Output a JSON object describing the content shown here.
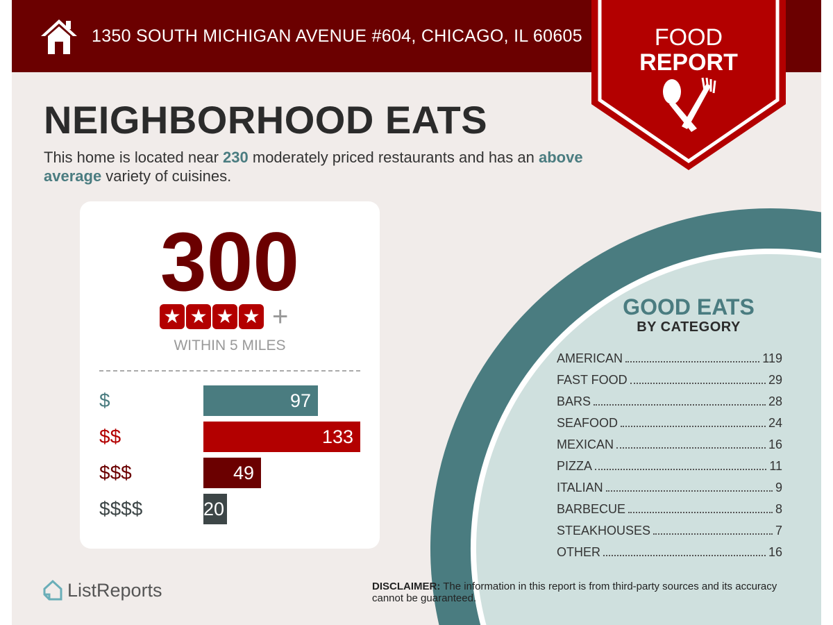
{
  "header": {
    "address": "1350 SOUTH MICHIGAN AVENUE #604, CHICAGO, IL 60605",
    "badge_line1": "FOOD",
    "badge_line2": "REPORT",
    "colors": {
      "dark_red": "#6b0000",
      "red": "#b30000",
      "teal": "#4a7c80"
    }
  },
  "main": {
    "title": "NEIGHBORHOOD EATS",
    "intro_pre": "This home is located near ",
    "intro_count": "230",
    "intro_mid": " moderately priced restaurants and has an ",
    "intro_variety": "above average",
    "intro_post": " variety of cuisines."
  },
  "summary": {
    "total": "300",
    "rating_stars": 4,
    "plus": "+",
    "within": "WITHIN 5 MILES"
  },
  "chart_data": {
    "type": "bar",
    "orientation": "horizontal",
    "categories": [
      "$",
      "$$",
      "$$$",
      "$$$$"
    ],
    "values": [
      97,
      133,
      49,
      20
    ],
    "colors": [
      "#4a7c80",
      "#b30000",
      "#6b0000",
      "#3d4647"
    ],
    "title": "",
    "xlabel": "",
    "ylabel": ""
  },
  "categories": {
    "title": "GOOD EATS",
    "subtitle": "BY CATEGORY",
    "items": [
      {
        "name": "AMERICAN",
        "count": "119"
      },
      {
        "name": "FAST FOOD",
        "count": "29"
      },
      {
        "name": "BARS",
        "count": "28"
      },
      {
        "name": "SEAFOOD",
        "count": "24"
      },
      {
        "name": "MEXICAN",
        "count": "16"
      },
      {
        "name": "PIZZA",
        "count": "11"
      },
      {
        "name": "ITALIAN",
        "count": "9"
      },
      {
        "name": "BARBECUE",
        "count": "8"
      },
      {
        "name": "STEAKHOUSES",
        "count": "7"
      },
      {
        "name": "OTHER",
        "count": "16"
      }
    ]
  },
  "footer": {
    "logo": "ListReports",
    "disclaimer_label": "DISCLAIMER:",
    "disclaimer_text": " The information in this report is from third-party sources and its accuracy cannot be guaranteed."
  }
}
